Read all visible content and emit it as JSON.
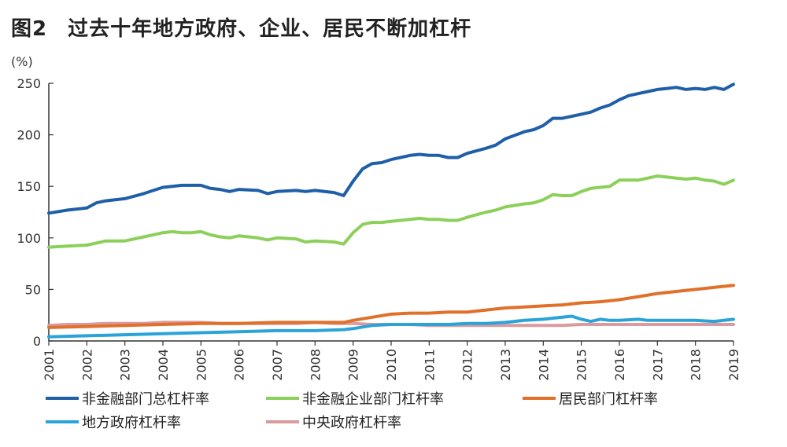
{
  "figure": {
    "number": "图2",
    "title": "过去十年地方政府、企业、居民不断加杠杆"
  },
  "chart_data": {
    "type": "line",
    "title": "过去十年地方政府、企业、居民不断加杠杆",
    "ylabel": "(%)",
    "xlabel": "",
    "ylim": [
      0,
      250
    ],
    "xlim": [
      2001,
      2019
    ],
    "y_ticks": [
      0,
      50,
      100,
      150,
      200,
      250
    ],
    "x_ticks": [
      "2001",
      "2002",
      "2003",
      "2004",
      "2005",
      "2006",
      "2007",
      "2008",
      "2009",
      "2010",
      "2011",
      "2012",
      "2013",
      "2014",
      "2015",
      "2016",
      "2017",
      "2018",
      "2019"
    ],
    "grid": false,
    "legend_position": "bottom",
    "series": [
      {
        "name": "非金融部门总杠杆率",
        "color": "#1f5fa8",
        "points": [
          [
            2001.0,
            124
          ],
          [
            2001.5,
            127
          ],
          [
            2002.0,
            129
          ],
          [
            2002.25,
            134
          ],
          [
            2002.5,
            136
          ],
          [
            2003.0,
            138
          ],
          [
            2003.5,
            143
          ],
          [
            2003.75,
            146
          ],
          [
            2004.0,
            149
          ],
          [
            2004.5,
            151
          ],
          [
            2004.75,
            151
          ],
          [
            2005.0,
            151
          ],
          [
            2005.25,
            148
          ],
          [
            2005.5,
            147
          ],
          [
            2005.75,
            145
          ],
          [
            2006.0,
            147
          ],
          [
            2006.5,
            146
          ],
          [
            2006.75,
            143
          ],
          [
            2007.0,
            145
          ],
          [
            2007.5,
            146
          ],
          [
            2007.75,
            145
          ],
          [
            2008.0,
            146
          ],
          [
            2008.5,
            144
          ],
          [
            2008.75,
            141
          ],
          [
            2009.0,
            155
          ],
          [
            2009.25,
            167
          ],
          [
            2009.5,
            172
          ],
          [
            2009.75,
            173
          ],
          [
            2010.0,
            176
          ],
          [
            2010.5,
            180
          ],
          [
            2010.75,
            181
          ],
          [
            2011.0,
            180
          ],
          [
            2011.25,
            180
          ],
          [
            2011.5,
            178
          ],
          [
            2011.75,
            178
          ],
          [
            2012.0,
            182
          ],
          [
            2012.5,
            187
          ],
          [
            2012.75,
            190
          ],
          [
            2013.0,
            196
          ],
          [
            2013.5,
            203
          ],
          [
            2013.75,
            205
          ],
          [
            2014.0,
            209
          ],
          [
            2014.25,
            216
          ],
          [
            2014.5,
            216
          ],
          [
            2014.75,
            218
          ],
          [
            2015.0,
            220
          ],
          [
            2015.25,
            222
          ],
          [
            2015.5,
            226
          ],
          [
            2015.75,
            229
          ],
          [
            2016.0,
            234
          ],
          [
            2016.25,
            238
          ],
          [
            2016.5,
            240
          ],
          [
            2016.75,
            242
          ],
          [
            2017.0,
            244
          ],
          [
            2017.25,
            245
          ],
          [
            2017.5,
            246
          ],
          [
            2017.75,
            244
          ],
          [
            2018.0,
            245
          ],
          [
            2018.25,
            244
          ],
          [
            2018.5,
            246
          ],
          [
            2018.75,
            244
          ],
          [
            2019.0,
            249
          ]
        ]
      },
      {
        "name": "非金融企业部门杠杆率",
        "color": "#8cd05a",
        "points": [
          [
            2001.0,
            91
          ],
          [
            2001.5,
            92
          ],
          [
            2002.0,
            93
          ],
          [
            2002.25,
            95
          ],
          [
            2002.5,
            97
          ],
          [
            2003.0,
            97
          ],
          [
            2003.5,
            101
          ],
          [
            2003.75,
            103
          ],
          [
            2004.0,
            105
          ],
          [
            2004.25,
            106
          ],
          [
            2004.5,
            105
          ],
          [
            2004.75,
            105
          ],
          [
            2005.0,
            106
          ],
          [
            2005.25,
            103
          ],
          [
            2005.5,
            101
          ],
          [
            2005.75,
            100
          ],
          [
            2006.0,
            102
          ],
          [
            2006.5,
            100
          ],
          [
            2006.75,
            98
          ],
          [
            2007.0,
            100
          ],
          [
            2007.5,
            99
          ],
          [
            2007.75,
            96
          ],
          [
            2008.0,
            97
          ],
          [
            2008.5,
            96
          ],
          [
            2008.75,
            94
          ],
          [
            2009.0,
            105
          ],
          [
            2009.25,
            113
          ],
          [
            2009.5,
            115
          ],
          [
            2009.75,
            115
          ],
          [
            2010.0,
            116
          ],
          [
            2010.5,
            118
          ],
          [
            2010.75,
            119
          ],
          [
            2011.0,
            118
          ],
          [
            2011.25,
            118
          ],
          [
            2011.5,
            117
          ],
          [
            2011.75,
            117
          ],
          [
            2012.0,
            120
          ],
          [
            2012.5,
            125
          ],
          [
            2012.75,
            127
          ],
          [
            2013.0,
            130
          ],
          [
            2013.5,
            133
          ],
          [
            2013.75,
            134
          ],
          [
            2014.0,
            137
          ],
          [
            2014.25,
            142
          ],
          [
            2014.5,
            141
          ],
          [
            2014.75,
            141
          ],
          [
            2015.0,
            145
          ],
          [
            2015.25,
            148
          ],
          [
            2015.5,
            149
          ],
          [
            2015.75,
            150
          ],
          [
            2016.0,
            156
          ],
          [
            2016.25,
            156
          ],
          [
            2016.5,
            156
          ],
          [
            2016.75,
            158
          ],
          [
            2017.0,
            160
          ],
          [
            2017.25,
            159
          ],
          [
            2017.5,
            158
          ],
          [
            2017.75,
            157
          ],
          [
            2018.0,
            158
          ],
          [
            2018.25,
            156
          ],
          [
            2018.5,
            155
          ],
          [
            2018.75,
            152
          ],
          [
            2019.0,
            156
          ]
        ]
      },
      {
        "name": "居民部门杠杆率",
        "color": "#e0702a",
        "points": [
          [
            2001.0,
            13
          ],
          [
            2002.0,
            14
          ],
          [
            2003.0,
            15
          ],
          [
            2004.0,
            16
          ],
          [
            2005.0,
            17
          ],
          [
            2006.0,
            17
          ],
          [
            2007.0,
            18
          ],
          [
            2008.0,
            18
          ],
          [
            2008.75,
            18
          ],
          [
            2009.0,
            20
          ],
          [
            2009.5,
            23
          ],
          [
            2010.0,
            26
          ],
          [
            2010.5,
            27
          ],
          [
            2011.0,
            27
          ],
          [
            2011.5,
            28
          ],
          [
            2012.0,
            28
          ],
          [
            2012.5,
            30
          ],
          [
            2013.0,
            32
          ],
          [
            2013.5,
            33
          ],
          [
            2014.0,
            34
          ],
          [
            2014.5,
            35
          ],
          [
            2015.0,
            37
          ],
          [
            2015.5,
            38
          ],
          [
            2016.0,
            40
          ],
          [
            2016.5,
            43
          ],
          [
            2017.0,
            46
          ],
          [
            2017.5,
            48
          ],
          [
            2018.0,
            50
          ],
          [
            2018.5,
            52
          ],
          [
            2019.0,
            54
          ]
        ]
      },
      {
        "name": "地方政府杠杆率",
        "color": "#2aa4d8",
        "points": [
          [
            2001.0,
            4
          ],
          [
            2002.0,
            5
          ],
          [
            2003.0,
            6
          ],
          [
            2004.0,
            7
          ],
          [
            2005.0,
            8
          ],
          [
            2006.0,
            9
          ],
          [
            2007.0,
            10
          ],
          [
            2008.0,
            10
          ],
          [
            2008.75,
            11
          ],
          [
            2009.0,
            12
          ],
          [
            2009.5,
            15
          ],
          [
            2010.0,
            16
          ],
          [
            2010.5,
            16
          ],
          [
            2011.0,
            16
          ],
          [
            2011.5,
            16
          ],
          [
            2012.0,
            17
          ],
          [
            2012.5,
            17
          ],
          [
            2013.0,
            18
          ],
          [
            2013.5,
            20
          ],
          [
            2014.0,
            21
          ],
          [
            2014.5,
            23
          ],
          [
            2014.75,
            24
          ],
          [
            2015.0,
            21
          ],
          [
            2015.25,
            19
          ],
          [
            2015.5,
            21
          ],
          [
            2015.75,
            20
          ],
          [
            2016.0,
            20
          ],
          [
            2016.5,
            21
          ],
          [
            2016.75,
            20
          ],
          [
            2017.0,
            20
          ],
          [
            2017.5,
            20
          ],
          [
            2017.75,
            20
          ],
          [
            2018.0,
            20
          ],
          [
            2018.5,
            19
          ],
          [
            2018.75,
            20
          ],
          [
            2019.0,
            21
          ]
        ]
      },
      {
        "name": "中央政府杠杆率",
        "color": "#d99aa0",
        "points": [
          [
            2001.0,
            15
          ],
          [
            2001.5,
            16
          ],
          [
            2002.0,
            16
          ],
          [
            2002.5,
            17
          ],
          [
            2003.0,
            17
          ],
          [
            2003.5,
            17
          ],
          [
            2004.0,
            18
          ],
          [
            2004.5,
            18
          ],
          [
            2005.0,
            18
          ],
          [
            2005.5,
            17
          ],
          [
            2006.0,
            17
          ],
          [
            2006.5,
            17
          ],
          [
            2007.0,
            17
          ],
          [
            2007.5,
            17
          ],
          [
            2008.0,
            18
          ],
          [
            2008.5,
            17
          ],
          [
            2009.0,
            17
          ],
          [
            2009.5,
            16
          ],
          [
            2010.0,
            16
          ],
          [
            2010.5,
            16
          ],
          [
            2011.0,
            15
          ],
          [
            2011.5,
            15
          ],
          [
            2012.0,
            15
          ],
          [
            2012.5,
            15
          ],
          [
            2013.0,
            15
          ],
          [
            2013.5,
            15
          ],
          [
            2014.0,
            15
          ],
          [
            2014.5,
            15
          ],
          [
            2015.0,
            16
          ],
          [
            2015.5,
            16
          ],
          [
            2016.0,
            16
          ],
          [
            2016.5,
            16
          ],
          [
            2017.0,
            16
          ],
          [
            2017.5,
            16
          ],
          [
            2018.0,
            16
          ],
          [
            2018.5,
            16
          ],
          [
            2019.0,
            16
          ]
        ]
      }
    ]
  }
}
